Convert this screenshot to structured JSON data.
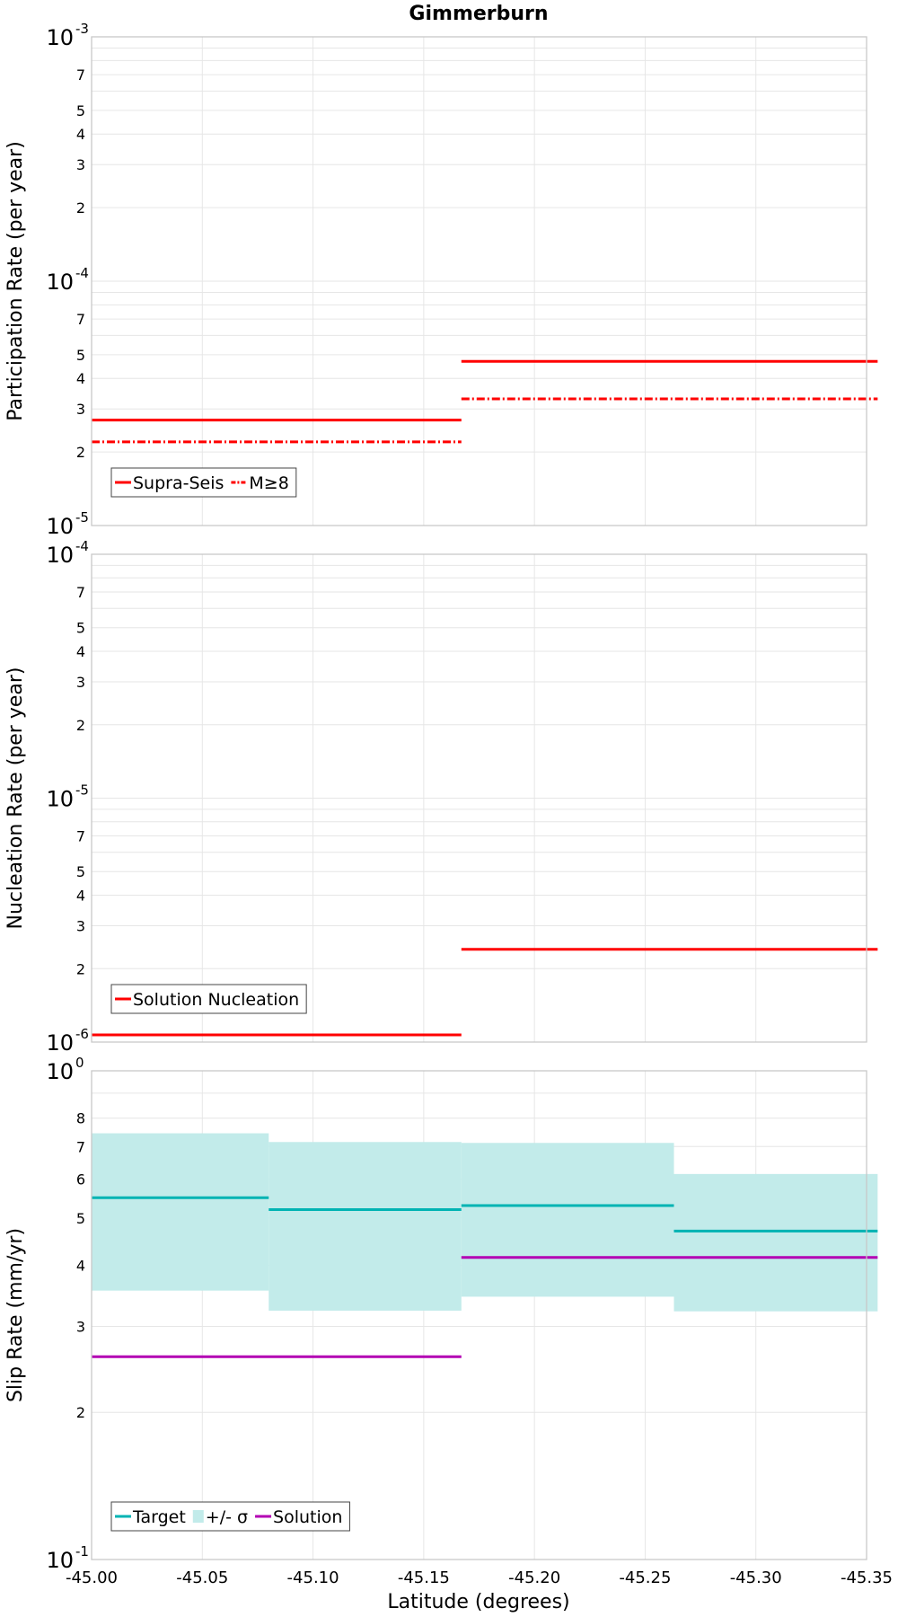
{
  "chart_data": {
    "title": "Gimmerburn",
    "xlabel": "Latitude (degrees)",
    "xlim": [
      -45.0,
      -45.35
    ],
    "xticks": [
      "-45.00",
      "-45.05",
      "-45.10",
      "-45.15",
      "-45.20",
      "-45.25",
      "-45.30",
      "-45.35"
    ],
    "grid": true,
    "panels": [
      {
        "type": "line",
        "ylabel": "Participation Rate (per year)",
        "yscale": "log",
        "ylim": [
          1e-05,
          0.001
        ],
        "legend_position": "bottom-left",
        "series": [
          {
            "name": "Supra-Seis",
            "color": "#ff0000",
            "style": "solid",
            "segments": [
              {
                "x": [
                  -45.0,
                  -45.167
                ],
                "y": 2.7e-05
              },
              {
                "x": [
                  -45.167,
                  -45.355
                ],
                "y": 4.7e-05
              }
            ]
          },
          {
            "name": "M≥8",
            "color": "#ff0000",
            "style": "dash-dot",
            "segments": [
              {
                "x": [
                  -45.0,
                  -45.167
                ],
                "y": 2.2e-05
              },
              {
                "x": [
                  -45.167,
                  -45.355
                ],
                "y": 3.3e-05
              }
            ]
          }
        ]
      },
      {
        "type": "line",
        "ylabel": "Nucleation Rate (per year)",
        "yscale": "log",
        "ylim": [
          1e-06,
          0.0001
        ],
        "legend_position": "bottom-left",
        "series": [
          {
            "name": "Solution Nucleation",
            "color": "#ff0000",
            "style": "solid",
            "segments": [
              {
                "x": [
                  -45.0,
                  -45.167
                ],
                "y": 1.07e-06
              },
              {
                "x": [
                  -45.167,
                  -45.355
                ],
                "y": 2.4e-06
              }
            ]
          }
        ]
      },
      {
        "type": "line",
        "ylabel": "Slip Rate (mm/yr)",
        "yscale": "log",
        "ylim": [
          0.1,
          1.0
        ],
        "yticklabels": [
          "2",
          "3",
          "4",
          "5",
          "6",
          "7",
          "8"
        ],
        "legend_position": "bottom-left",
        "series": [
          {
            "name": "Target",
            "color": "#00b3b3",
            "style": "solid",
            "segments": [
              {
                "x": [
                  -45.0,
                  -45.08
                ],
                "y": 0.55
              },
              {
                "x": [
                  -45.08,
                  -45.167
                ],
                "y": 0.52
              },
              {
                "x": [
                  -45.167,
                  -45.263
                ],
                "y": 0.53
              },
              {
                "x": [
                  -45.263,
                  -45.355
                ],
                "y": 0.47
              }
            ]
          },
          {
            "name": "+/- σ",
            "color": "#c2ebea",
            "style": "band",
            "segments": [
              {
                "x": [
                  -45.0,
                  -45.08
                ],
                "low": 0.355,
                "high": 0.745
              },
              {
                "x": [
                  -45.08,
                  -45.167
                ],
                "low": 0.323,
                "high": 0.715
              },
              {
                "x": [
                  -45.167,
                  -45.263
                ],
                "low": 0.345,
                "high": 0.712
              },
              {
                "x": [
                  -45.263,
                  -45.355
                ],
                "low": 0.322,
                "high": 0.615
              }
            ]
          },
          {
            "name": "Solution",
            "color": "#b300b3",
            "style": "solid",
            "segments": [
              {
                "x": [
                  -45.0,
                  -45.167
                ],
                "y": 0.26
              },
              {
                "x": [
                  -45.167,
                  -45.355
                ],
                "y": 0.415
              }
            ]
          }
        ]
      }
    ]
  }
}
